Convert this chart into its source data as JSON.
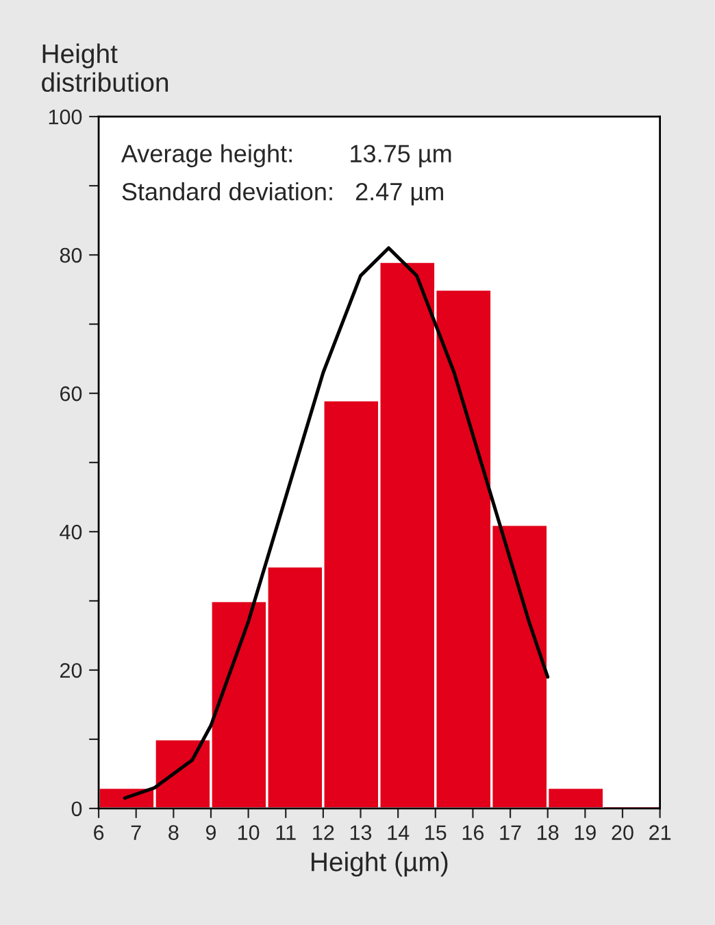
{
  "chart_data": {
    "type": "histogram",
    "ylabel": "Height\ndistribution",
    "xlabel": "Height (µm)",
    "annotations": [
      "Average height:        13.75 µm",
      "Standard deviation:   2.47 µm"
    ],
    "bins": [
      6,
      7.5,
      9,
      10.5,
      12,
      13.5,
      15,
      16.5,
      18,
      19.5,
      21
    ],
    "values": [
      3,
      10,
      30,
      35,
      59,
      79,
      75,
      41,
      3,
      0
    ],
    "color": "#e2001a",
    "series": [
      {
        "type": "line",
        "color": "#000000",
        "x": [
          6.7,
          7.5,
          8.5,
          9,
          10,
          11,
          12,
          13,
          13.75,
          14.5,
          15.5,
          16.5,
          17.5,
          18
        ],
        "values": [
          1.5,
          3,
          7,
          12,
          27,
          45,
          63,
          77,
          81,
          77,
          63,
          45,
          27,
          19
        ]
      }
    ],
    "xlim": [
      6,
      21
    ],
    "xticks": [
      6,
      7,
      8,
      9,
      10,
      11,
      12,
      13,
      14,
      15,
      16,
      17,
      18,
      19,
      20,
      21
    ],
    "ylim": [
      0,
      100
    ],
    "yticks": [
      0,
      {
        "value": 10,
        "label": null
      },
      20,
      {
        "value": 30,
        "label": null
      },
      40,
      {
        "value": 50,
        "label": null
      },
      60,
      {
        "value": 70,
        "label": null
      },
      80,
      {
        "value": 90,
        "label": null
      },
      100
    ],
    "grid": false,
    "legend": false,
    "line_style": "solid",
    "marker": "none"
  }
}
